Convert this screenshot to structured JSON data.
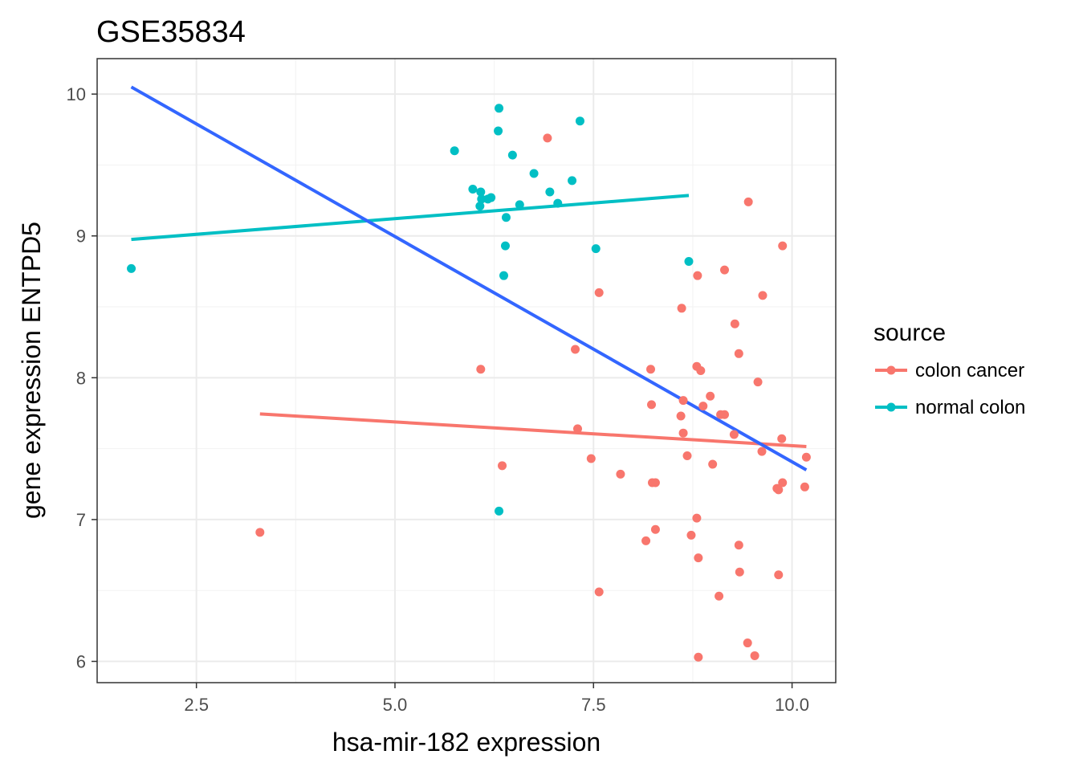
{
  "chart_data": {
    "type": "scatter",
    "title": "GSE35834",
    "xlabel": "hsa-mir-182 expression",
    "ylabel": "gene expression ENTPD5",
    "xlim": [
      1.25,
      10.55
    ],
    "ylim": [
      5.85,
      10.25
    ],
    "x_ticks": [
      2.5,
      5.0,
      7.5,
      10.0
    ],
    "x_tick_labels": [
      "2.5",
      "5.0",
      "7.5",
      "10.0"
    ],
    "y_ticks": [
      6,
      7,
      8,
      9,
      10
    ],
    "y_tick_labels": [
      "6",
      "7",
      "8",
      "9",
      "10"
    ],
    "grid": true,
    "legend": {
      "title": "source",
      "position": "right"
    },
    "series": [
      {
        "name": "colon cancer",
        "color": "#F8766D",
        "points": [
          [
            6.92,
            9.69
          ],
          [
            9.45,
            9.24
          ],
          [
            9.88,
            8.93
          ],
          [
            9.15,
            8.76
          ],
          [
            8.81,
            8.72
          ],
          [
            7.57,
            8.6
          ],
          [
            9.63,
            8.58
          ],
          [
            8.61,
            8.49
          ],
          [
            9.28,
            8.38
          ],
          [
            7.27,
            8.2
          ],
          [
            9.33,
            8.17
          ],
          [
            6.08,
            8.06
          ],
          [
            8.22,
            8.06
          ],
          [
            8.8,
            8.08
          ],
          [
            8.85,
            8.05
          ],
          [
            9.57,
            7.97
          ],
          [
            8.97,
            7.87
          ],
          [
            8.63,
            7.84
          ],
          [
            8.23,
            7.81
          ],
          [
            8.88,
            7.8
          ],
          [
            9.1,
            7.74
          ],
          [
            9.15,
            7.74
          ],
          [
            8.6,
            7.73
          ],
          [
            7.3,
            7.64
          ],
          [
            8.63,
            7.61
          ],
          [
            9.27,
            7.6
          ],
          [
            9.87,
            7.57
          ],
          [
            9.62,
            7.48
          ],
          [
            8.68,
            7.45
          ],
          [
            7.47,
            7.43
          ],
          [
            10.18,
            7.44
          ],
          [
            9.0,
            7.39
          ],
          [
            6.35,
            7.38
          ],
          [
            7.84,
            7.32
          ],
          [
            8.24,
            7.26
          ],
          [
            8.28,
            7.26
          ],
          [
            9.88,
            7.26
          ],
          [
            9.81,
            7.22
          ],
          [
            9.83,
            7.21
          ],
          [
            10.16,
            7.23
          ],
          [
            8.8,
            7.01
          ],
          [
            3.3,
            6.91
          ],
          [
            8.28,
            6.93
          ],
          [
            8.73,
            6.89
          ],
          [
            8.16,
            6.85
          ],
          [
            9.33,
            6.82
          ],
          [
            8.82,
            6.73
          ],
          [
            9.34,
            6.63
          ],
          [
            9.83,
            6.61
          ],
          [
            7.57,
            6.49
          ],
          [
            9.08,
            6.46
          ],
          [
            9.44,
            6.13
          ],
          [
            9.53,
            6.04
          ],
          [
            8.82,
            6.03
          ]
        ]
      },
      {
        "name": "normal colon",
        "color": "#00BFC4",
        "points": [
          [
            6.31,
            9.9
          ],
          [
            7.33,
            9.81
          ],
          [
            6.3,
            9.74
          ],
          [
            5.75,
            9.6
          ],
          [
            6.48,
            9.57
          ],
          [
            6.75,
            9.44
          ],
          [
            7.23,
            9.39
          ],
          [
            5.98,
            9.33
          ],
          [
            6.08,
            9.31
          ],
          [
            6.21,
            9.27
          ],
          [
            6.09,
            9.26
          ],
          [
            6.17,
            9.26
          ],
          [
            6.95,
            9.31
          ],
          [
            7.05,
            9.23
          ],
          [
            6.57,
            9.22
          ],
          [
            6.07,
            9.21
          ],
          [
            6.4,
            9.13
          ],
          [
            6.39,
            8.93
          ],
          [
            7.53,
            8.91
          ],
          [
            8.7,
            8.82
          ],
          [
            6.37,
            8.72
          ],
          [
            1.68,
            8.77
          ],
          [
            6.31,
            7.06
          ]
        ]
      }
    ],
    "fit_lines": [
      {
        "name": "colon cancer",
        "color": "#F8766D",
        "x": [
          3.3,
          10.18
        ],
        "y": [
          7.745,
          7.515
        ]
      },
      {
        "name": "normal colon",
        "color": "#00BFC4",
        "x": [
          1.68,
          8.7
        ],
        "y": [
          8.975,
          9.285
        ]
      },
      {
        "name": "overall",
        "color": "#3366FF",
        "x": [
          1.68,
          10.18
        ],
        "y": [
          10.05,
          7.35
        ]
      }
    ]
  }
}
